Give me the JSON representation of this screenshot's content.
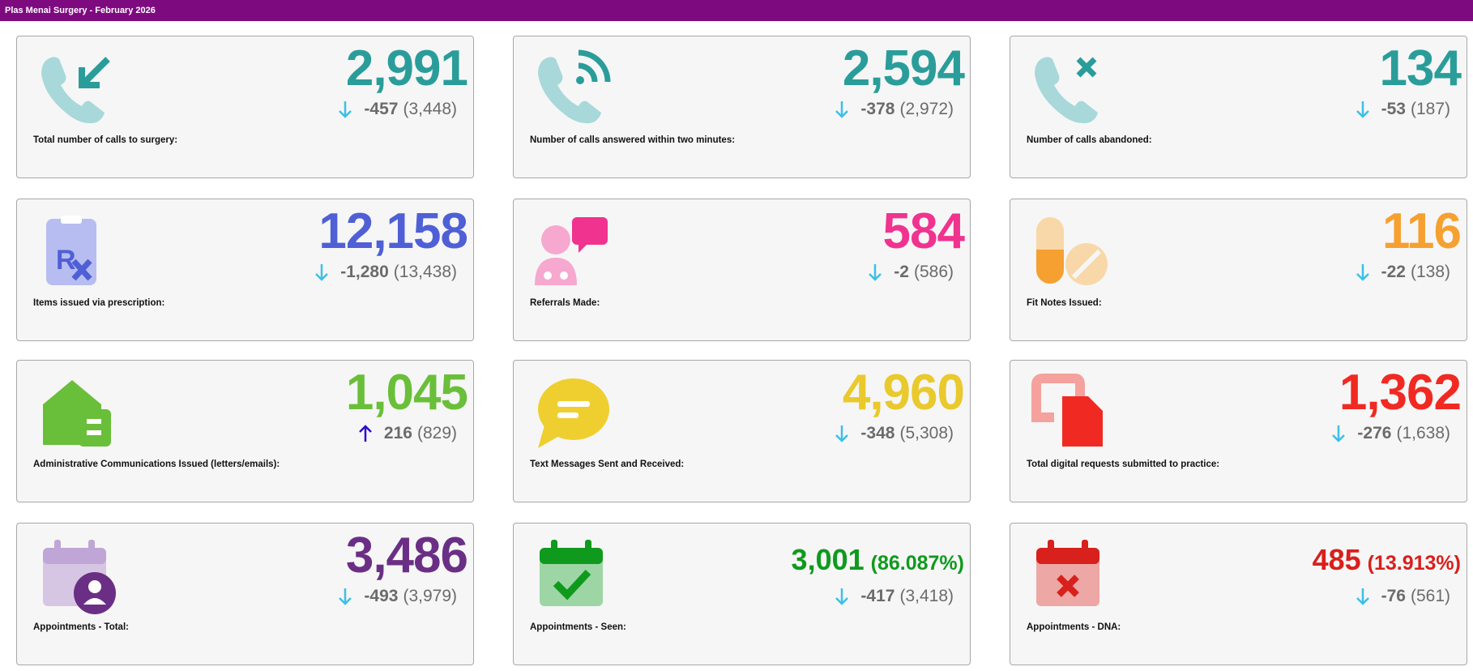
{
  "header": {
    "title": "Plas Menai Surgery - February 2026"
  },
  "cards": [
    {
      "label": "Total number of calls to surgery:",
      "value": "2,991",
      "change": "-457",
      "previous": "(3,448)",
      "color": "#2a9d9a"
    },
    {
      "label": "Number of calls answered within two minutes:",
      "value": "2,594",
      "change": "-378",
      "previous": "(2,972)",
      "color": "#2a9d9a"
    },
    {
      "label": "Number of calls abandoned:",
      "value": "134",
      "change": "-53",
      "previous": "(187)",
      "color": "#2a9d9a"
    },
    {
      "label": "Items issued via prescription:",
      "value": "12,158",
      "change": "-1,280",
      "previous": "(13,438)",
      "color": "#4f5fd6"
    },
    {
      "label": "Referrals Made:",
      "value": "584",
      "change": "-2",
      "previous": "(586)",
      "color": "#f0338f"
    },
    {
      "label": "Fit Notes Issued:",
      "value": "116",
      "change": "-22",
      "previous": "(138)",
      "color": "#f5a030"
    },
    {
      "label": "Administrative Communications Issued (letters/emails):",
      "value": "1,045",
      "change": "216",
      "previous": "(829)",
      "color": "#6abf3a"
    },
    {
      "label": "Text Messages Sent and Received:",
      "value": "4,960",
      "change": "-348",
      "previous": "(5,308)",
      "color": "#e9c92c"
    },
    {
      "label": "Total digital requests submitted to practice:",
      "value": "1,362",
      "change": "-276",
      "previous": "(1,638)",
      "color": "#f02a22"
    },
    {
      "label": "Appointments - Total:",
      "value": "3,486",
      "change": "-493",
      "previous": "(3,979)",
      "color": "#6a2f85"
    },
    {
      "label": "Appointments - Seen:",
      "value": "3,001",
      "percent": "(86.087%)",
      "change": "-417",
      "previous": "(3,418)",
      "color": "#0f9a1e"
    },
    {
      "label": "Appointments - DNA:",
      "value": "485",
      "percent": "(13.913%)",
      "change": "-76",
      "previous": "(561)",
      "color": "#d8201c"
    }
  ]
}
